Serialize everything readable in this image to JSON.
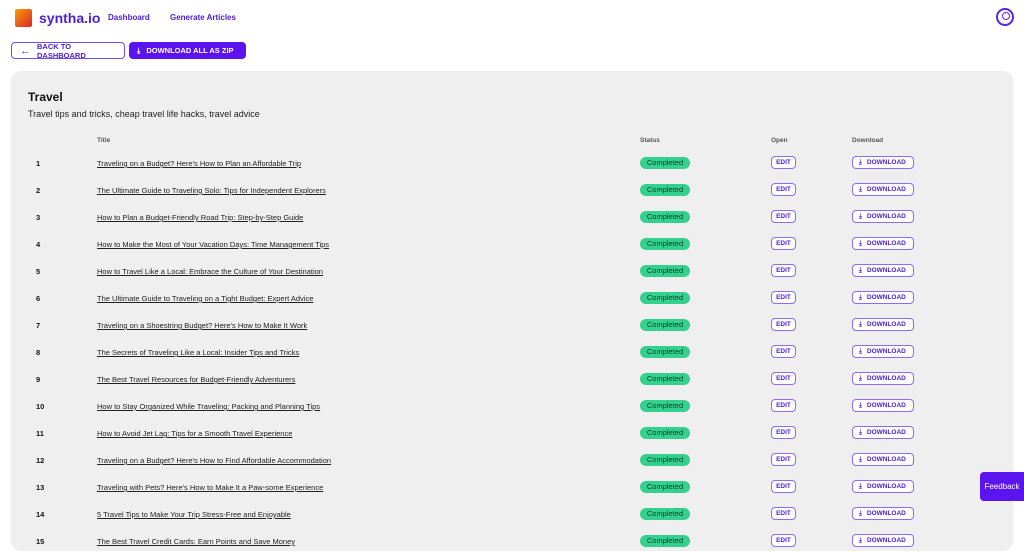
{
  "nav": {
    "brand": "syntha.io",
    "links": [
      "Dashboard",
      "Generate Articles"
    ]
  },
  "actions": {
    "back": "BACK TO DASHBOARD",
    "zip": "DOWNLOAD ALL AS ZIP"
  },
  "category": {
    "title": "Travel",
    "description": "Travel tips and tricks, cheap travel life hacks, travel advice"
  },
  "table": {
    "headers": {
      "title": "Title",
      "status": "Status",
      "open": "Open",
      "download": "Download"
    },
    "edit_label": "EDIT",
    "download_label": "DOWNLOAD",
    "rows": [
      {
        "n": "1",
        "title": "Traveling on a Budget? Here's How to Plan an Affordable Trip",
        "status": "Completed"
      },
      {
        "n": "2",
        "title": "The Ultimate Guide to Traveling Solo: Tips for Independent Explorers",
        "status": "Completed"
      },
      {
        "n": "3",
        "title": "How to Plan a Budget-Friendly Road Trip: Step-by-Step Guide",
        "status": "Completed"
      },
      {
        "n": "4",
        "title": "How to Make the Most of Your Vacation Days: Time Management Tips",
        "status": "Completed"
      },
      {
        "n": "5",
        "title": "How to Travel Like a Local: Embrace the Culture of Your Destination",
        "status": "Completed"
      },
      {
        "n": "6",
        "title": "The Ultimate Guide to Traveling on a Tight Budget: Expert Advice",
        "status": "Completed"
      },
      {
        "n": "7",
        "title": "Traveling on a Shoestring Budget? Here's How to Make It Work",
        "status": "Completed"
      },
      {
        "n": "8",
        "title": "The Secrets of Traveling Like a Local: Insider Tips and Tricks",
        "status": "Completed"
      },
      {
        "n": "9",
        "title": "The Best Travel Resources for Budget-Friendly Adventurers",
        "status": "Completed"
      },
      {
        "n": "10",
        "title": "How to Stay Organized While Traveling: Packing and Planning Tips",
        "status": "Completed"
      },
      {
        "n": "11",
        "title": "How to Avoid Jet Lag: Tips for a Smooth Travel Experience",
        "status": "Completed"
      },
      {
        "n": "12",
        "title": "Traveling on a Budget? Here's How to Find Affordable Accommodation",
        "status": "Completed"
      },
      {
        "n": "13",
        "title": "Traveling with Pets? Here's How to Make It a Paw-some Experience",
        "status": "Completed"
      },
      {
        "n": "14",
        "title": "5 Travel Tips to Make Your Trip Stress-Free and Enjoyable",
        "status": "Completed"
      },
      {
        "n": "15",
        "title": "The Best Travel Credit Cards: Earn Points and Save Money",
        "status": "Completed"
      }
    ]
  },
  "feedback": "Feedback",
  "colors": {
    "accent": "#5b14f0",
    "status": "#34d08e"
  }
}
